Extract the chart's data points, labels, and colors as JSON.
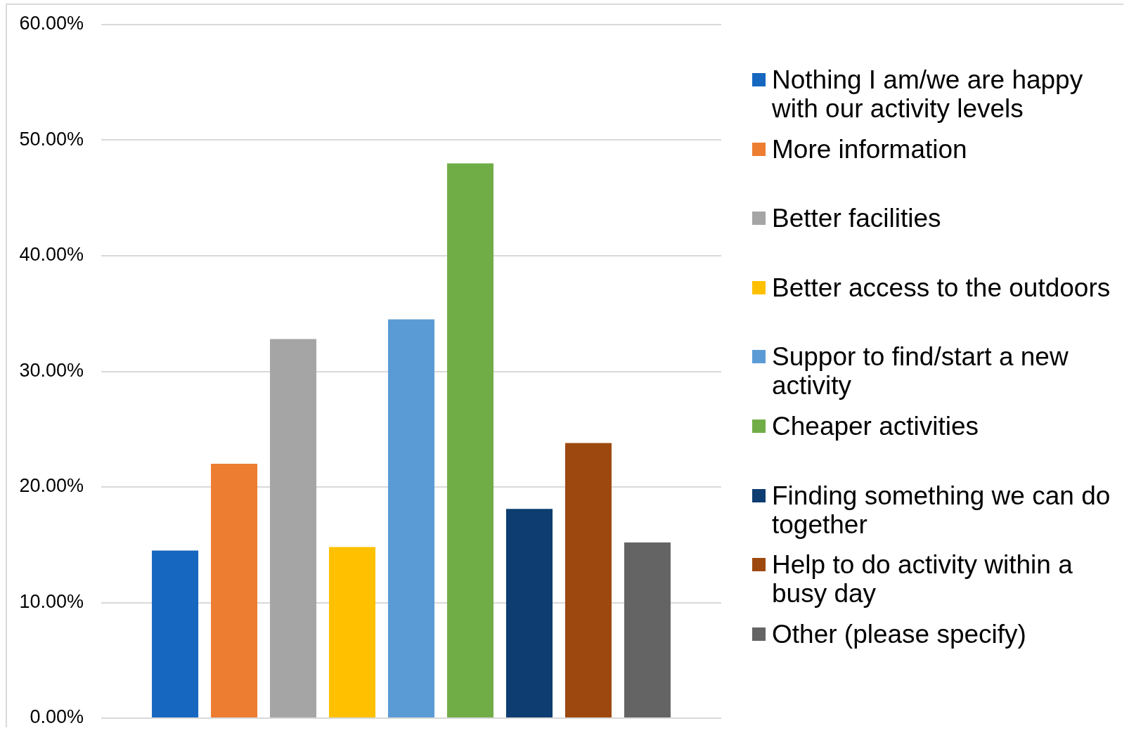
{
  "chart_data": {
    "type": "bar",
    "categories": [
      null
    ],
    "series": [
      {
        "name": "Nothing I am/we are happy with our activity levels",
        "color": "#1667c0",
        "values": [
          14.5
        ]
      },
      {
        "name": "More information",
        "color": "#ed7d31",
        "values": [
          22.0
        ]
      },
      {
        "name": "Better facilities",
        "color": "#a5a5a5",
        "values": [
          32.8
        ]
      },
      {
        "name": "Better access to the outdoors",
        "color": "#ffc000",
        "values": [
          14.8
        ]
      },
      {
        "name": "Suppor to find/start a new activity",
        "color": "#5b9bd5",
        "values": [
          34.5
        ]
      },
      {
        "name": "Cheaper activities",
        "color": "#70ad47",
        "values": [
          48.0
        ]
      },
      {
        "name": "Finding something we can do together",
        "color": "#0d3d71",
        "values": [
          18.1
        ]
      },
      {
        "name": "Help to do activity within a busy day",
        "color": "#9d480e",
        "values": [
          23.8
        ]
      },
      {
        "name": "Other (please specify)",
        "color": "#646464",
        "values": [
          15.2
        ]
      }
    ],
    "ylim": [
      0,
      60
    ],
    "yticks": [
      {
        "value": 0,
        "label": "0.00%"
      },
      {
        "value": 10,
        "label": "10.00%"
      },
      {
        "value": 20,
        "label": "20.00%"
      },
      {
        "value": 30,
        "label": "30.00%"
      },
      {
        "value": 40,
        "label": "40.00%"
      },
      {
        "value": 50,
        "label": "50.00%"
      },
      {
        "value": 60,
        "label": "60.00%"
      }
    ],
    "grid": "y",
    "legend": "right",
    "tick_labels": "y"
  }
}
